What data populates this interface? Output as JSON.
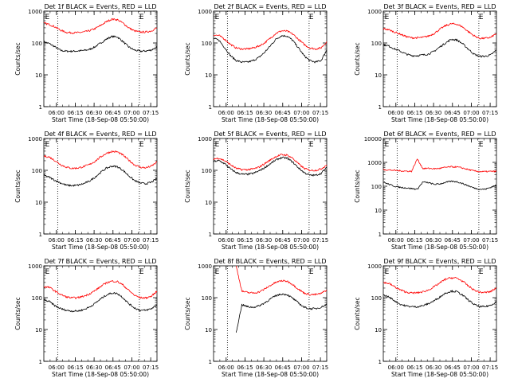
{
  "figure": {
    "type": "multi-panel line chart",
    "background": "#ffffff",
    "colors": {
      "events": "#000000",
      "lld": "#ff0000",
      "axes": "#000000"
    }
  },
  "chart_data": [
    {
      "type": "line",
      "title": "Det 1f BLACK = Events, RED = LLD",
      "xlabel": "Start Time (18-Sep-08 05:50:00)",
      "ylabel": "Counts/sec",
      "xlim": [
        0,
        90
      ],
      "ylim": [
        1,
        1000
      ],
      "yscale": "log",
      "xticks": [
        10,
        25,
        40,
        55,
        70,
        85
      ],
      "xtick_labels": [
        "06:00",
        "06:15",
        "06:30",
        "06:45",
        "07:00",
        "07:15"
      ],
      "yticks": [
        1,
        10,
        100,
        1000
      ],
      "ytick_labels": [
        "1",
        "10",
        "100",
        "1000"
      ],
      "annotations": [
        {
          "text": "E",
          "x": 1
        },
        {
          "text": "E",
          "x": 76
        }
      ],
      "vlines": [
        11,
        76
      ],
      "series": [
        {
          "color": "#000000",
          "values": [
            110,
            95,
            75,
            58,
            55,
            55,
            56,
            58,
            62,
            75,
            98,
            130,
            160,
            155,
            110,
            75,
            60,
            55,
            56,
            60,
            75
          ]
        },
        {
          "color": "#ff0000",
          "values": [
            420,
            380,
            320,
            250,
            215,
            210,
            210,
            220,
            240,
            280,
            350,
            460,
            560,
            540,
            420,
            300,
            240,
            220,
            220,
            240,
            300
          ]
        }
      ]
    },
    {
      "type": "line",
      "title": "Det 2f BLACK = Events, RED = LLD",
      "xlabel": "Start Time (18-Sep-08 05:50:00)",
      "ylabel": "Counts/sec",
      "xlim": [
        0,
        90
      ],
      "ylim": [
        1,
        1000
      ],
      "yscale": "log",
      "xticks": [
        10,
        25,
        40,
        55,
        70,
        85
      ],
      "xtick_labels": [
        "06:00",
        "06:15",
        "06:30",
        "06:45",
        "07:00",
        "07:15"
      ],
      "yticks": [
        1,
        10,
        100,
        1000
      ],
      "ytick_labels": [
        "1",
        "10",
        "100",
        "1000"
      ],
      "annotations": [
        {
          "text": "E",
          "x": 1
        },
        {
          "text": "E",
          "x": 76
        }
      ],
      "vlines": [
        11,
        76
      ],
      "series": [
        {
          "color": "#000000",
          "values": [
            140,
            120,
            70,
            40,
            28,
            25,
            25,
            28,
            35,
            50,
            80,
            130,
            170,
            165,
            120,
            70,
            40,
            28,
            25,
            28,
            60
          ]
        },
        {
          "color": "#ff0000",
          "values": [
            180,
            170,
            130,
            90,
            70,
            65,
            65,
            70,
            80,
            100,
            140,
            200,
            240,
            235,
            190,
            130,
            90,
            70,
            65,
            70,
            110
          ]
        }
      ]
    },
    {
      "type": "line",
      "title": "Det 3f BLACK = Events, RED = LLD",
      "xlabel": "Start Time (18-Sep-08 05:50:00)",
      "ylabel": "Counts/sec",
      "xlim": [
        0,
        90
      ],
      "ylim": [
        1,
        1000
      ],
      "yscale": "log",
      "xticks": [
        10,
        25,
        40,
        55,
        70,
        85
      ],
      "xtick_labels": [
        "06:00",
        "06:15",
        "06:30",
        "06:45",
        "07:00",
        "07:15"
      ],
      "yticks": [
        1,
        10,
        100,
        1000
      ],
      "ytick_labels": [
        "1",
        "10",
        "100",
        "1000"
      ],
      "annotations": [
        {
          "text": "E",
          "x": 1
        },
        {
          "text": "E",
          "x": 76
        }
      ],
      "vlines": [
        11,
        76
      ],
      "series": [
        {
          "color": "#000000",
          "values": [
            90,
            80,
            65,
            55,
            45,
            40,
            40,
            42,
            45,
            55,
            75,
            100,
            130,
            125,
            95,
            65,
            45,
            38,
            38,
            42,
            60
          ]
        },
        {
          "color": "#ff0000",
          "values": [
            280,
            260,
            220,
            190,
            160,
            145,
            145,
            150,
            165,
            200,
            270,
            350,
            400,
            390,
            320,
            230,
            170,
            140,
            140,
            150,
            200
          ]
        }
      ]
    },
    {
      "type": "line",
      "title": "Det 4f BLACK = Events, RED = LLD",
      "xlabel": "Start Time (18-Sep-08 05:50:00)",
      "ylabel": "Counts/sec",
      "xlim": [
        0,
        90
      ],
      "ylim": [
        1,
        1000
      ],
      "yscale": "log",
      "xticks": [
        10,
        25,
        40,
        55,
        70,
        85
      ],
      "xtick_labels": [
        "06:00",
        "06:15",
        "06:30",
        "06:45",
        "07:00",
        "07:15"
      ],
      "yticks": [
        1,
        10,
        100,
        1000
      ],
      "ytick_labels": [
        "1",
        "10",
        "100",
        "1000"
      ],
      "annotations": [
        {
          "text": "E",
          "x": 1
        },
        {
          "text": "E",
          "x": 76
        }
      ],
      "vlines": [
        11,
        76
      ],
      "series": [
        {
          "color": "#000000",
          "values": [
            70,
            60,
            48,
            40,
            34,
            33,
            34,
            38,
            45,
            60,
            85,
            115,
            135,
            130,
            100,
            68,
            48,
            40,
            38,
            42,
            55
          ]
        },
        {
          "color": "#ff0000",
          "values": [
            280,
            260,
            200,
            150,
            125,
            115,
            118,
            130,
            150,
            190,
            260,
            340,
            390,
            380,
            300,
            210,
            150,
            125,
            120,
            135,
            180
          ]
        }
      ]
    },
    {
      "type": "line",
      "title": "Det 5f BLACK = Events, RED = LLD",
      "xlabel": "Start Time (18-Sep-08 05:50:00)",
      "ylabel": "Counts/sec",
      "xlim": [
        0,
        90
      ],
      "ylim": [
        1,
        1000
      ],
      "yscale": "log",
      "xticks": [
        10,
        25,
        40,
        55,
        70,
        85
      ],
      "xtick_labels": [
        "06:00",
        "06:15",
        "06:30",
        "06:45",
        "07:00",
        "07:15"
      ],
      "yticks": [
        1,
        10,
        100,
        1000
      ],
      "ytick_labels": [
        "1",
        "10",
        "100",
        "1000"
      ],
      "annotations": [
        {
          "text": "E",
          "x": 1
        },
        {
          "text": "E",
          "x": 76
        }
      ],
      "vlines": [
        11,
        76
      ],
      "series": [
        {
          "color": "#000000",
          "values": [
            190,
            200,
            160,
            110,
            85,
            75,
            75,
            80,
            95,
            120,
            160,
            210,
            250,
            240,
            180,
            120,
            85,
            70,
            70,
            80,
            120
          ]
        },
        {
          "color": "#ff0000",
          "values": [
            230,
            240,
            200,
            150,
            115,
            105,
            105,
            110,
            125,
            160,
            210,
            270,
            310,
            300,
            240,
            160,
            115,
            100,
            100,
            110,
            150
          ]
        }
      ]
    },
    {
      "type": "line",
      "title": "Det 6f BLACK = Events, RED = LLD",
      "xlabel": "Start Time (18-Sep-08 05:50:00)",
      "ylabel": "Counts/sec",
      "xlim": [
        0,
        90
      ],
      "ylim": [
        1,
        10000
      ],
      "yscale": "log",
      "xticks": [
        10,
        25,
        40,
        55,
        70,
        85
      ],
      "xtick_labels": [
        "06:00",
        "06:15",
        "06:30",
        "06:45",
        "07:00",
        "07:15"
      ],
      "yticks": [
        1,
        10,
        100,
        1000,
        10000
      ],
      "ytick_labels": [
        "1",
        "10",
        "100",
        "1000",
        "10000"
      ],
      "annotations": [
        {
          "text": "E",
          "x": 1
        },
        {
          "text": "E",
          "x": 76
        }
      ],
      "vlines": [
        11,
        76
      ],
      "series": [
        {
          "color": "#000000",
          "values": [
            150,
            120,
            100,
            90,
            85,
            80,
            75,
            150,
            140,
            120,
            125,
            145,
            160,
            155,
            130,
            105,
            85,
            75,
            75,
            90,
            110
          ]
        },
        {
          "color": "#ff0000",
          "values": [
            500,
            480,
            460,
            440,
            430,
            420,
            1400,
            550,
            560,
            540,
            560,
            620,
            650,
            640,
            580,
            500,
            440,
            410,
            410,
            420,
            420
          ]
        }
      ]
    },
    {
      "type": "line",
      "title": "Det 7f BLACK = Events, RED = LLD",
      "xlabel": "Start Time (18-Sep-08 05:50:00)",
      "ylabel": "Counts/sec",
      "xlim": [
        0,
        90
      ],
      "ylim": [
        1,
        1000
      ],
      "yscale": "log",
      "xticks": [
        10,
        25,
        40,
        55,
        70,
        85
      ],
      "xtick_labels": [
        "06:00",
        "06:15",
        "06:30",
        "06:45",
        "07:00",
        "07:15"
      ],
      "yticks": [
        1,
        10,
        100,
        1000
      ],
      "ytick_labels": [
        "1",
        "10",
        "100",
        "1000"
      ],
      "annotations": [
        {
          "text": "E",
          "x": 1
        },
        {
          "text": "E",
          "x": 76
        }
      ],
      "vlines": [
        11,
        76
      ],
      "series": [
        {
          "color": "#000000",
          "values": [
            85,
            75,
            55,
            45,
            40,
            38,
            38,
            42,
            50,
            65,
            90,
            120,
            140,
            135,
            100,
            65,
            48,
            40,
            40,
            45,
            60
          ]
        },
        {
          "color": "#ff0000",
          "values": [
            220,
            210,
            160,
            125,
            105,
            98,
            100,
            110,
            130,
            165,
            220,
            290,
            330,
            320,
            250,
            170,
            120,
            100,
            98,
            110,
            160
          ]
        }
      ]
    },
    {
      "type": "line",
      "title": "Det 8f BLACK = Events, RED = LLD",
      "xlabel": "Start Time (18-Sep-08 05:50:00)",
      "ylabel": "Counts/sec",
      "xlim": [
        0,
        90
      ],
      "ylim": [
        1,
        1000
      ],
      "yscale": "log",
      "xticks": [
        10,
        25,
        40,
        55,
        70,
        85
      ],
      "xtick_labels": [
        "06:00",
        "06:15",
        "06:30",
        "06:45",
        "07:00",
        "07:15"
      ],
      "yticks": [
        1,
        10,
        100,
        1000
      ],
      "ytick_labels": [
        "1",
        "10",
        "100",
        "1000"
      ],
      "annotations": [
        {
          "text": "E",
          "x": 1
        },
        {
          "text": "E",
          "x": 76
        }
      ],
      "vlines": [
        11,
        76
      ],
      "series": [
        {
          "color": "#000000",
          "values": [
            null,
            null,
            null,
            null,
            8,
            60,
            52,
            50,
            55,
            68,
            90,
            115,
            130,
            125,
            95,
            68,
            50,
            45,
            45,
            50,
            62
          ]
        },
        {
          "color": "#ff0000",
          "values": [
            null,
            null,
            null,
            null,
            1000,
            160,
            145,
            140,
            150,
            185,
            240,
            300,
            340,
            330,
            260,
            185,
            140,
            125,
            125,
            135,
            175
          ]
        }
      ]
    },
    {
      "type": "line",
      "title": "Det 9f BLACK = Events, RED = LLD",
      "xlabel": "Start Time (18-Sep-08 05:50:00)",
      "ylabel": "Counts/sec",
      "xlim": [
        0,
        90
      ],
      "ylim": [
        1,
        1000
      ],
      "yscale": "log",
      "xticks": [
        10,
        25,
        40,
        55,
        70,
        85
      ],
      "xtick_labels": [
        "06:00",
        "06:15",
        "06:30",
        "06:45",
        "07:00",
        "07:15"
      ],
      "yticks": [
        1,
        10,
        100,
        1000
      ],
      "ytick_labels": [
        "1",
        "10",
        "100",
        "1000"
      ],
      "annotations": [
        {
          "text": "E",
          "x": 1
        },
        {
          "text": "E",
          "x": 76
        }
      ],
      "vlines": [
        11,
        76
      ],
      "series": [
        {
          "color": "#000000",
          "values": [
            120,
            105,
            80,
            62,
            55,
            52,
            52,
            56,
            65,
            80,
            105,
            140,
            160,
            155,
            120,
            85,
            62,
            52,
            52,
            58,
            75
          ]
        },
        {
          "color": "#ff0000",
          "values": [
            300,
            280,
            220,
            175,
            150,
            140,
            142,
            152,
            175,
            220,
            290,
            380,
            420,
            410,
            330,
            235,
            175,
            148,
            145,
            155,
            205
          ]
        }
      ]
    }
  ]
}
